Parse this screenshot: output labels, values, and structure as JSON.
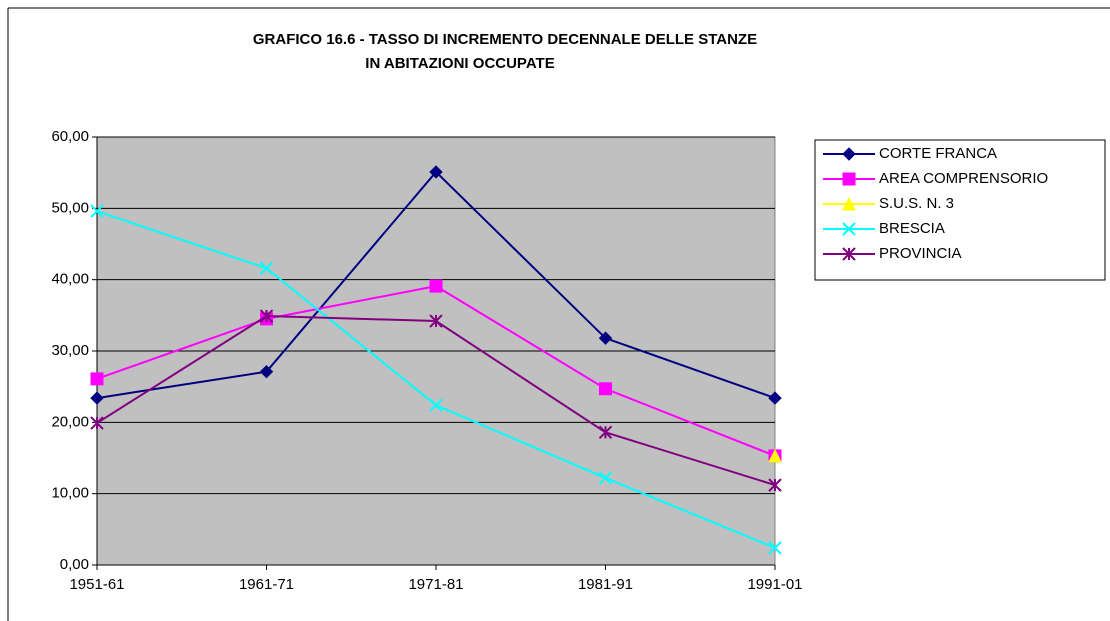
{
  "chart_data": {
    "type": "line",
    "title": [
      "GRAFICO 16.6 - TASSO DI INCREMENTO DECENNALE DELLE STANZE",
      "IN ABITAZIONI OCCUPATE"
    ],
    "categories": [
      "1951-61",
      "1961-71",
      "1971-81",
      "1981-91",
      "1991-01"
    ],
    "series": [
      {
        "name": "CORTE FRANCA",
        "color": "#000080",
        "marker": "diamond",
        "values": [
          23.4,
          27.1,
          55.1,
          31.8,
          23.4
        ]
      },
      {
        "name": "AREA COMPRENSORIO",
        "color": "#ff00ff",
        "marker": "square",
        "values": [
          26.1,
          34.5,
          39.1,
          24.7,
          15.3
        ]
      },
      {
        "name": "S.U.S. N. 3",
        "color": "#ffff00",
        "marker": "triangle",
        "values": [
          null,
          null,
          null,
          null,
          15.3
        ]
      },
      {
        "name": "BRESCIA",
        "color": "#00ffff",
        "marker": "x",
        "values": [
          49.6,
          41.6,
          22.4,
          12.2,
          2.4
        ]
      },
      {
        "name": "PROVINCIA",
        "color": "#800080",
        "marker": "star",
        "values": [
          19.9,
          34.9,
          34.2,
          18.6,
          11.2
        ]
      }
    ],
    "ylim": [
      0,
      60
    ],
    "yticks": [
      {
        "value": 0,
        "label": "0,00"
      },
      {
        "value": 10,
        "label": "10,00"
      },
      {
        "value": 20,
        "label": "20,00"
      },
      {
        "value": 30,
        "label": "30,00"
      },
      {
        "value": 40,
        "label": "40,00"
      },
      {
        "value": 50,
        "label": "50,00"
      },
      {
        "value": 60,
        "label": "60,00"
      }
    ],
    "grid": true,
    "legend": "right"
  }
}
